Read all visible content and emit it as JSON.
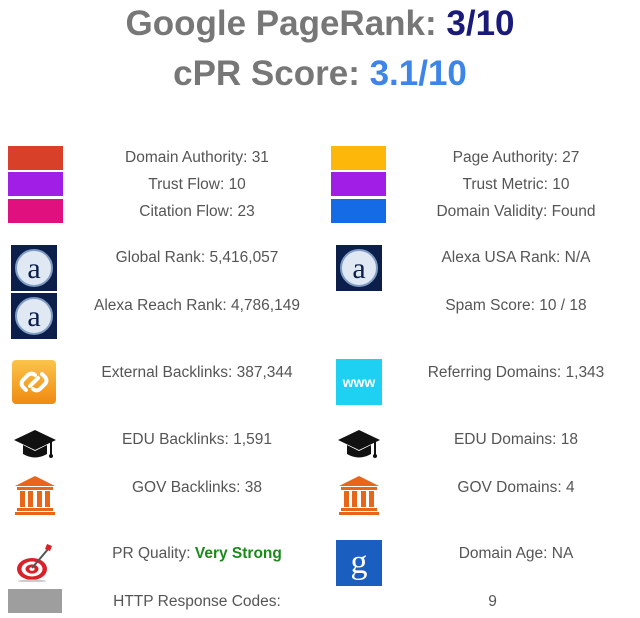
{
  "header": {
    "pagerank_label": "Google PageRank: ",
    "pagerank_value": "3/10",
    "cpr_label": "cPR Score: ",
    "cpr_value": "3.1/10"
  },
  "colors": {
    "pagerank": "#1a1a7a",
    "cpr": "#3d86e8",
    "domain_authority": "#d9402a",
    "trust_flow": "#a11ee6",
    "citation_flow": "#e0117f",
    "page_authority": "#fdb60a",
    "trust_metric": "#a11ee6",
    "domain_validity": "#156be6",
    "pr_quality": "#1a8a1a"
  },
  "metrics": {
    "domain_authority": "Domain Authority: 31",
    "trust_flow": "Trust Flow: 10",
    "citation_flow": "Citation Flow: 23",
    "page_authority": "Page Authority: 27",
    "trust_metric": "Trust Metric: 10",
    "domain_validity": "Domain Validity: Found",
    "global_rank": "Global Rank: 5,416,057",
    "alexa_usa_rank": "Alexa USA Rank: N/A",
    "alexa_reach_rank": "Alexa Reach Rank: 4,786,149",
    "spam_score": "Spam Score: 10 / 18",
    "external_backlinks": "External Backlinks: 387,344",
    "referring_domains": "Referring Domains: 1,343",
    "edu_backlinks": "EDU Backlinks: 1,591",
    "edu_domains": "EDU Domains: 18",
    "gov_backlinks": "GOV Backlinks: 38",
    "gov_domains": "GOV Domains: 4",
    "pr_quality_label": "PR Quality: ",
    "pr_quality_value": "Very Strong",
    "domain_age": "Domain Age: NA",
    "http_response_label": "HTTP Response Codes:",
    "http_response_value": "9"
  },
  "icons": {
    "alexa_glyph": "a",
    "www_text": "www",
    "google_glyph": "g"
  }
}
